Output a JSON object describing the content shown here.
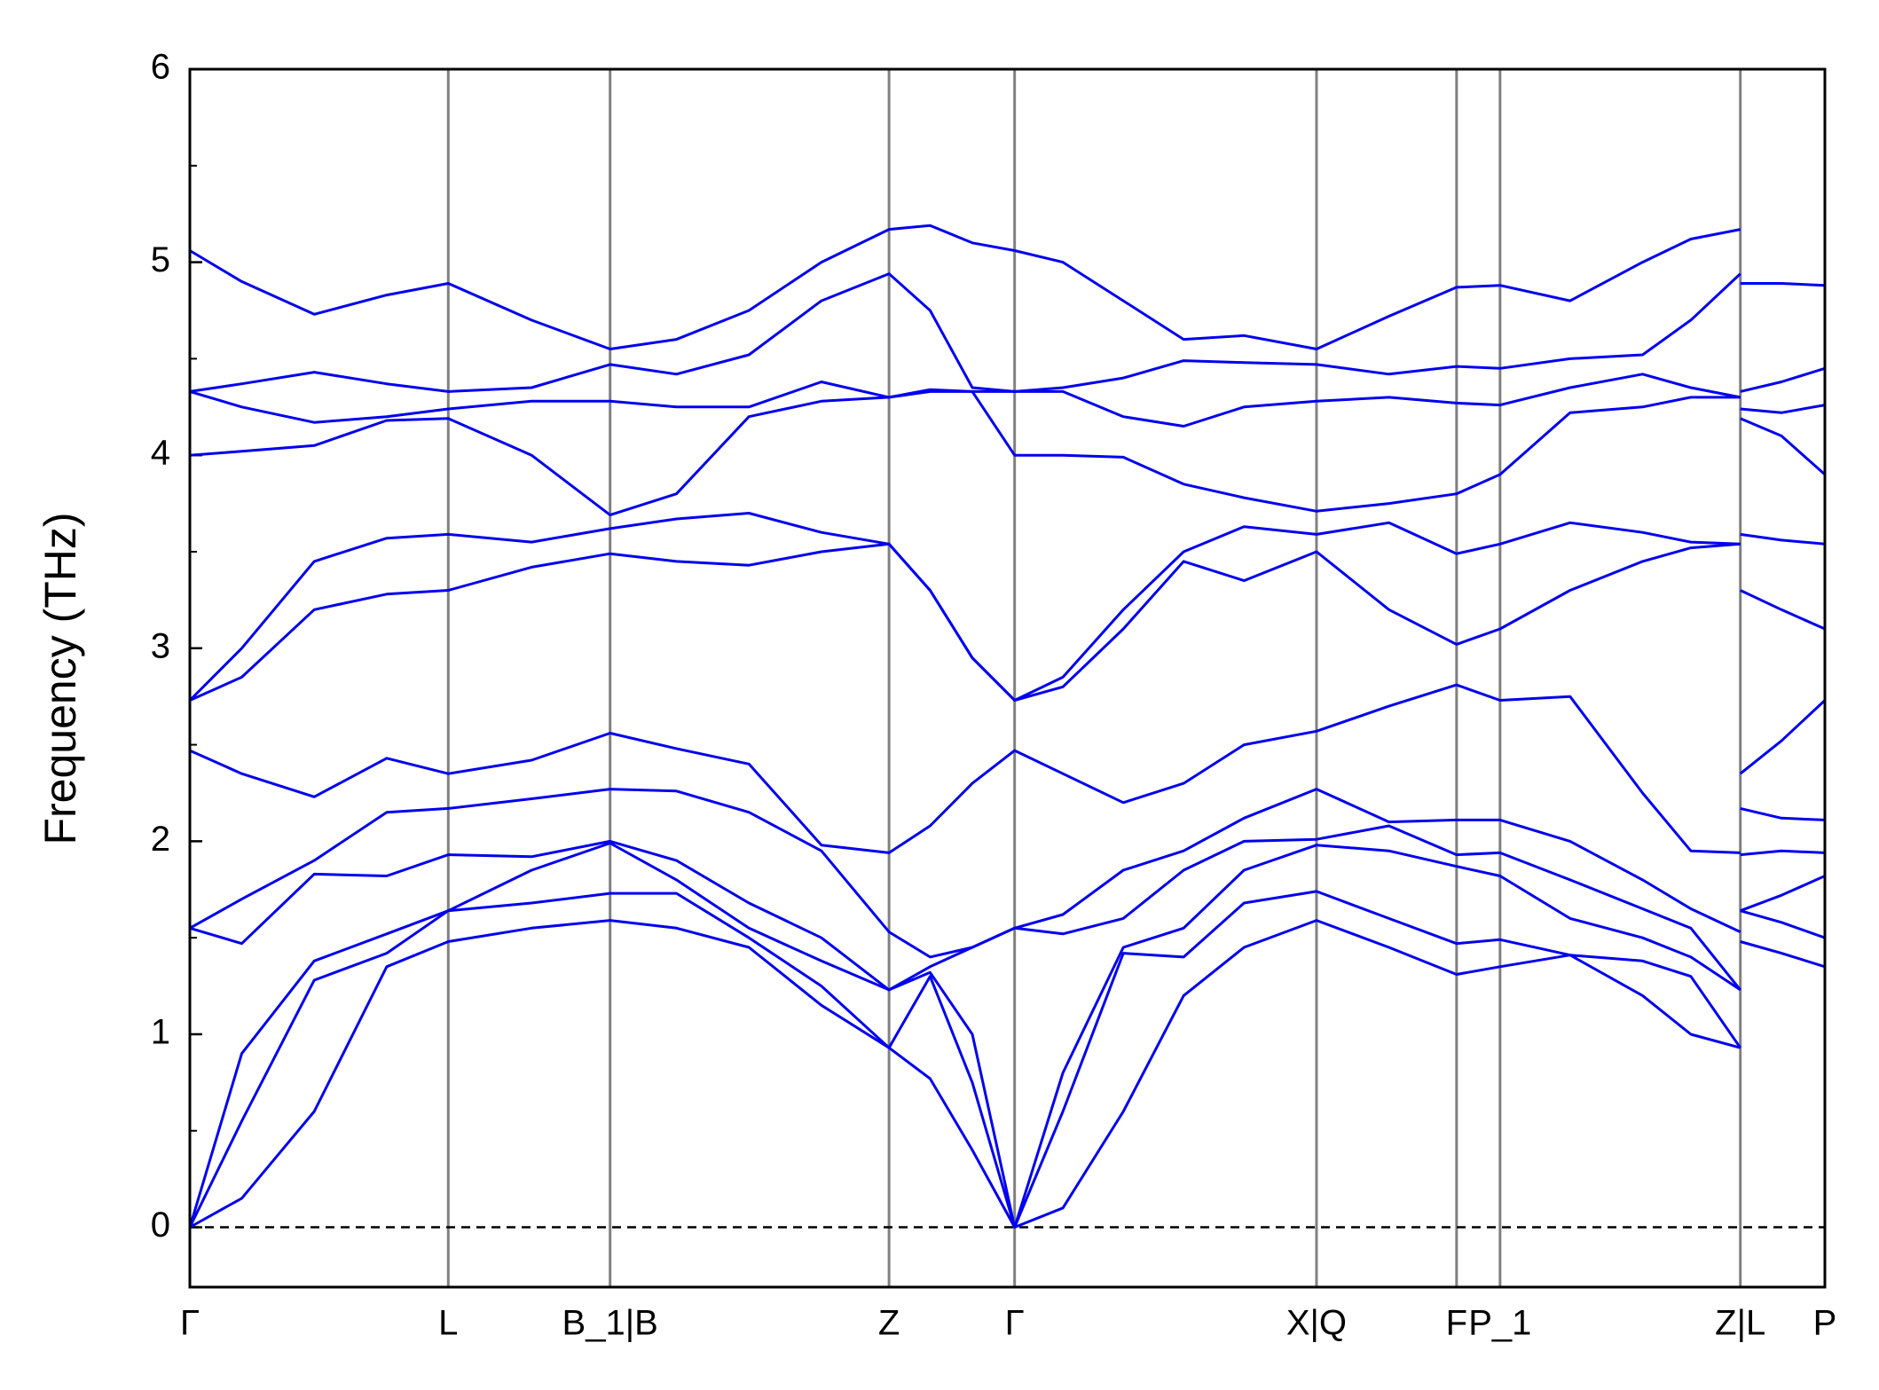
{
  "chart_data": {
    "type": "line",
    "y_label": "Frequency (THz)",
    "x": [
      0,
      0.043,
      0.103,
      0.163,
      0.214,
      0.283,
      0.348,
      0.403,
      0.463,
      0.523,
      0.579,
      0.613,
      0.648,
      0.683,
      0.723,
      0.773,
      0.823,
      0.873,
      0.933,
      0.993,
      1.049,
      1.085,
      1.143,
      1.203,
      1.243,
      1.284,
      1.284,
      1.284,
      1.318,
      1.354
    ],
    "xlim": [
      0,
      1.354
    ],
    "xticks": [
      {
        "value": 0,
        "label": "Γ"
      },
      {
        "value": 0.214,
        "label": "L"
      },
      {
        "value": 0.348,
        "label": "B_1|B"
      },
      {
        "value": 0.579,
        "label": "Z"
      },
      {
        "value": 0.683,
        "label": "Γ"
      },
      {
        "value": 0.933,
        "label": "X|Q"
      },
      {
        "value": 1.049,
        "label": "F"
      },
      {
        "value": 1.085,
        "label": "P_1"
      },
      {
        "value": 1.284,
        "label": "Z|L"
      },
      {
        "value": 1.354,
        "label": "P"
      }
    ],
    "ylim": [
      -0.31,
      6
    ],
    "yticks": [
      0,
      1,
      2,
      3,
      4,
      5,
      6
    ],
    "minor_yticks": [
      0.5,
      1.5,
      2.5,
      3.5,
      4.5,
      5.5
    ],
    "reference_line": 0,
    "vertical_lines": true,
    "series": [
      {
        "color": "#0000ee",
        "values": [
          0,
          0.15,
          0.6,
          1.35,
          1.48,
          1.55,
          1.59,
          1.55,
          1.45,
          1.15,
          0.93,
          0.77,
          0.4,
          0,
          0.1,
          0.6,
          1.2,
          1.45,
          1.59,
          1.45,
          1.31,
          1.35,
          1.41,
          1.2,
          1.0,
          0.93,
          null,
          1.48,
          1.42,
          1.35
        ]
      },
      {
        "color": "#0000ee",
        "values": [
          0,
          0.55,
          1.28,
          1.42,
          1.64,
          1.68,
          1.73,
          1.73,
          1.5,
          1.25,
          0.93,
          1.3,
          0.75,
          0,
          0.6,
          1.42,
          1.4,
          1.68,
          1.74,
          1.6,
          1.47,
          1.49,
          1.41,
          1.38,
          1.3,
          0.93,
          null,
          1.64,
          1.58,
          1.5
        ]
      },
      {
        "color": "#0000ee",
        "values": [
          0,
          0.9,
          1.38,
          1.52,
          1.64,
          1.85,
          1.99,
          1.8,
          1.55,
          1.38,
          1.23,
          1.32,
          1.0,
          0,
          0.8,
          1.45,
          1.55,
          1.85,
          1.98,
          1.95,
          1.87,
          1.82,
          1.6,
          1.5,
          1.4,
          1.23,
          null,
          1.64,
          1.72,
          1.82
        ]
      },
      {
        "color": "#0000ee",
        "values": [
          1.55,
          1.47,
          1.83,
          1.82,
          1.93,
          1.92,
          2.0,
          1.9,
          1.68,
          1.5,
          1.23,
          1.35,
          1.45,
          1.55,
          1.52,
          1.6,
          1.85,
          2.0,
          2.01,
          2.08,
          1.93,
          1.94,
          1.8,
          1.65,
          1.55,
          1.23,
          null,
          1.93,
          1.95,
          1.94
        ]
      },
      {
        "color": "#0000ee",
        "values": [
          1.55,
          1.7,
          1.9,
          2.15,
          2.17,
          2.22,
          2.27,
          2.26,
          2.15,
          1.95,
          1.53,
          1.4,
          1.45,
          1.55,
          1.62,
          1.85,
          1.95,
          2.12,
          2.27,
          2.1,
          2.11,
          2.11,
          2.0,
          1.8,
          1.65,
          1.53,
          null,
          2.17,
          2.12,
          2.11
        ]
      },
      {
        "color": "#0000ee",
        "values": [
          2.47,
          2.35,
          2.23,
          2.43,
          2.35,
          2.42,
          2.56,
          2.48,
          2.4,
          1.98,
          1.94,
          2.08,
          2.3,
          2.47,
          2.35,
          2.2,
          2.3,
          2.5,
          2.57,
          2.7,
          2.81,
          2.73,
          2.75,
          2.25,
          1.95,
          1.94,
          null,
          2.35,
          2.52,
          2.73
        ]
      },
      {
        "color": "#0000ee",
        "values": [
          2.73,
          2.85,
          3.2,
          3.28,
          3.3,
          3.42,
          3.49,
          3.45,
          3.43,
          3.5,
          3.54,
          3.3,
          2.95,
          2.73,
          2.8,
          3.1,
          3.45,
          3.35,
          3.5,
          3.2,
          3.02,
          3.1,
          3.3,
          3.45,
          3.52,
          3.54,
          null,
          3.3,
          3.2,
          3.1
        ]
      },
      {
        "color": "#0000ee",
        "values": [
          2.73,
          3.0,
          3.45,
          3.57,
          3.59,
          3.55,
          3.62,
          3.67,
          3.7,
          3.6,
          3.54,
          3.3,
          2.95,
          2.73,
          2.85,
          3.2,
          3.5,
          3.63,
          3.59,
          3.65,
          3.49,
          3.54,
          3.65,
          3.6,
          3.55,
          3.54,
          null,
          3.59,
          3.56,
          3.54
        ]
      },
      {
        "color": "#0000ee",
        "values": [
          4.0,
          4.02,
          4.05,
          4.18,
          4.19,
          4.0,
          3.69,
          3.8,
          4.2,
          4.28,
          4.3,
          4.33,
          4.33,
          4.0,
          4.0,
          3.99,
          3.85,
          3.78,
          3.71,
          3.75,
          3.8,
          3.9,
          4.22,
          4.25,
          4.3,
          4.3,
          null,
          4.19,
          4.1,
          3.9
        ]
      },
      {
        "color": "#0000ee",
        "values": [
          4.33,
          4.25,
          4.17,
          4.2,
          4.24,
          4.28,
          4.28,
          4.25,
          4.25,
          4.38,
          4.3,
          4.34,
          4.33,
          4.33,
          4.33,
          4.2,
          4.15,
          4.25,
          4.28,
          4.3,
          4.27,
          4.26,
          4.35,
          4.42,
          4.35,
          4.3,
          null,
          4.24,
          4.22,
          4.26
        ]
      },
      {
        "color": "#0000ee",
        "values": [
          4.33,
          4.37,
          4.43,
          4.37,
          4.33,
          4.35,
          4.47,
          4.42,
          4.52,
          4.8,
          4.94,
          4.75,
          4.35,
          4.33,
          4.35,
          4.4,
          4.49,
          4.48,
          4.47,
          4.42,
          4.46,
          4.45,
          4.5,
          4.52,
          4.7,
          4.94,
          null,
          4.33,
          4.38,
          4.45
        ]
      },
      {
        "color": "#0000ee",
        "values": [
          5.06,
          4.9,
          4.73,
          4.83,
          4.89,
          4.7,
          4.55,
          4.6,
          4.75,
          5.0,
          5.17,
          5.19,
          5.1,
          5.06,
          5.0,
          4.8,
          4.6,
          4.62,
          4.55,
          4.72,
          4.87,
          4.88,
          4.8,
          5.0,
          5.12,
          5.17,
          null,
          4.89,
          4.89,
          4.88
        ]
      }
    ]
  }
}
